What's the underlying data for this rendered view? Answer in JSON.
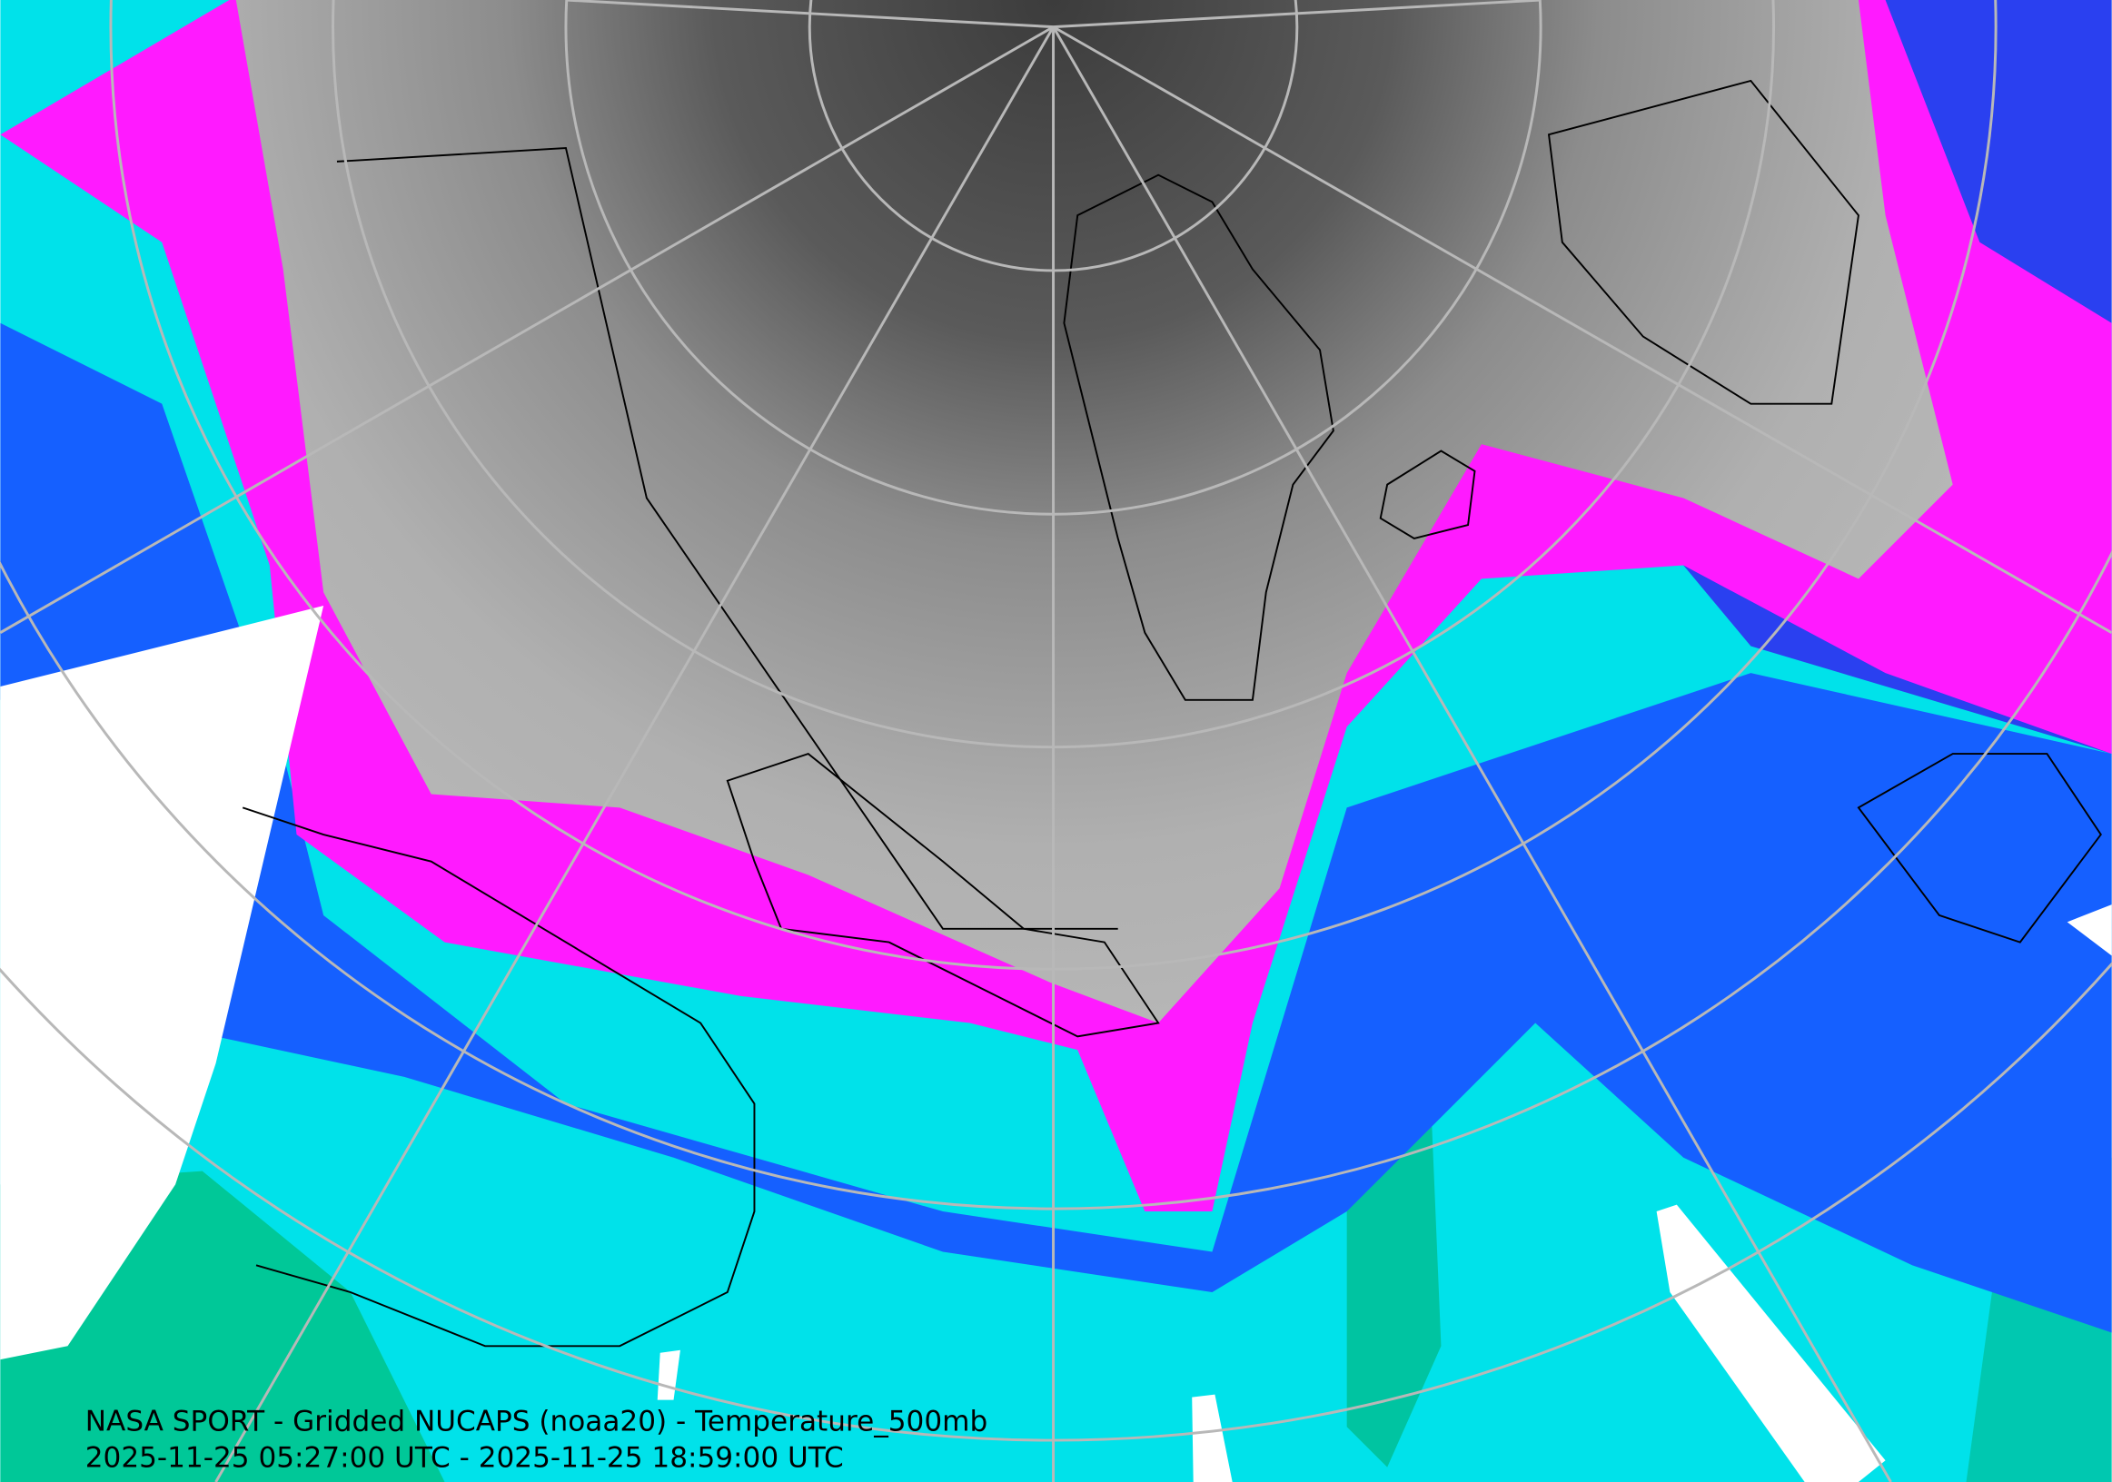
{
  "caption": {
    "title": "NASA SPORT - Gridded NUCAPS (noaa20) - Temperature_500mb",
    "time_range": "2025-11-25 05:27:00 UTC - 2025-11-25 18:59:00 UTC"
  }
}
